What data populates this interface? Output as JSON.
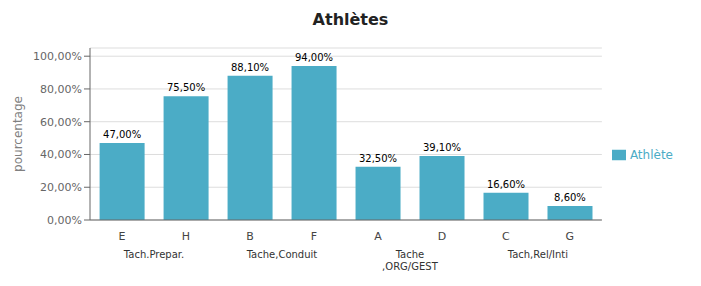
{
  "chart_data": {
    "type": "bar",
    "title": "Athlètes",
    "ylabel": "pourcentage",
    "categories": [
      "E",
      "H",
      "B",
      "F",
      "A",
      "D",
      "C",
      "G"
    ],
    "group_labels": [
      "Tach.Prepar.",
      "Tache,Conduit",
      "Tache\n,ORG/GEST",
      "Tach,Rel/Inti"
    ],
    "series": [
      {
        "name": "Athlète",
        "color": "#4BACC6",
        "values": [
          47.0,
          75.5,
          88.1,
          94.0,
          32.5,
          39.1,
          16.6,
          8.6
        ],
        "value_labels": [
          "47,00%",
          "75,50%",
          "88,10%",
          "94,00%",
          "32,50%",
          "39,10%",
          "16,60%",
          "8,60%"
        ]
      }
    ],
    "ylim": [
      0,
      105
    ],
    "yticks": [
      {
        "value": 0,
        "label": "0,00%"
      },
      {
        "value": 20,
        "label": "20,00%"
      },
      {
        "value": 40,
        "label": "40,00%"
      },
      {
        "value": 60,
        "label": "60,00%"
      },
      {
        "value": 80,
        "label": "80,00%"
      },
      {
        "value": 100,
        "label": "100,00%"
      }
    ],
    "grid": true,
    "legend": "right",
    "data_labels": true
  }
}
